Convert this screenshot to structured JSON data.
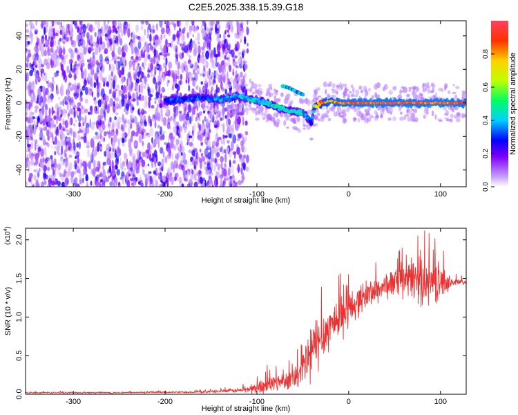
{
  "title": "C2E5.2025.338.15.39.G18",
  "chart_data": [
    {
      "type": "heatmap",
      "panel": "top",
      "xlabel": "Height of straight line (km)",
      "ylabel": "Frequency (Hz)",
      "xlim": [
        -352,
        128
      ],
      "ylim": [
        -50,
        49
      ],
      "xticks": [
        -300,
        -200,
        -100,
        0,
        100
      ],
      "xtick_labels": [
        "-300",
        "-200",
        "-100",
        "0",
        "100"
      ],
      "yticks": [
        -40,
        -20,
        0,
        20,
        40
      ],
      "ytick_labels": [
        "-40",
        "-20",
        "0",
        "20",
        "40"
      ],
      "colorbar": {
        "label": "Normalized spectral amplitude",
        "range": [
          0,
          1
        ],
        "ticks": [
          0.0,
          0.2,
          0.4,
          0.6,
          0.8
        ],
        "tick_labels": [
          "0.0",
          "0.2",
          "0.4",
          "0.6",
          "0.8"
        ]
      },
      "noise_region": {
        "x_from": -352,
        "x_to": -120,
        "amplitude": 0.2
      },
      "ridge": {
        "x": [
          -200,
          -180,
          -160,
          -140,
          -120,
          -105,
          -90,
          -75,
          -60,
          -50,
          -45,
          -40,
          -38,
          -30,
          -20,
          -10,
          0,
          20,
          40,
          60,
          80,
          100,
          128
        ],
        "y": [
          1,
          2,
          3,
          2,
          4,
          2,
          0,
          -3,
          -5,
          -6,
          -9,
          -12,
          -3,
          0,
          1,
          0,
          0,
          0,
          0,
          0,
          0,
          0,
          0
        ],
        "amplitude": [
          0.35,
          0.35,
          0.35,
          0.4,
          0.4,
          0.45,
          0.45,
          0.5,
          0.5,
          0.45,
          0.4,
          0.35,
          0.6,
          0.9,
          0.95,
          0.98,
          0.99,
          1,
          1,
          1,
          1,
          1,
          1
        ]
      },
      "side_branch": {
        "x": [
          -72,
          -65,
          -58,
          -50
        ],
        "y": [
          10,
          9,
          7,
          5
        ],
        "amplitude": 0.4
      }
    },
    {
      "type": "line",
      "panel": "bottom",
      "xlabel": "Height of straight line (km)",
      "ylabel": "SNR (10 * v/v)",
      "y_scale_note": "(x10",
      "y_scale_exponent": "4",
      "y_scale_close": ")",
      "xlim": [
        -352,
        128
      ],
      "ylim": [
        0,
        2.15
      ],
      "xticks": [
        -300,
        -200,
        -100,
        0,
        100
      ],
      "xtick_labels": [
        "-300",
        "-200",
        "-100",
        "0",
        "100"
      ],
      "yticks": [
        0.0,
        0.5,
        1.0,
        1.5,
        2.0
      ],
      "ytick_labels": [
        "0.0",
        "0.5",
        "1.0",
        "1.5",
        "2.0"
      ],
      "series": [
        {
          "name": "SNR",
          "color": "#ee3030",
          "x": [
            -352,
            -300,
            -250,
            -200,
            -160,
            -140,
            -120,
            -100,
            -90,
            -80,
            -70,
            -60,
            -55,
            -50,
            -45,
            -40,
            -35,
            -30,
            -25,
            -20,
            -15,
            -10,
            -5,
            0,
            5,
            10,
            20,
            30,
            40,
            50,
            60,
            70,
            80,
            90,
            100,
            110,
            120,
            128
          ],
          "y": [
            0.02,
            0.02,
            0.02,
            0.025,
            0.03,
            0.04,
            0.05,
            0.08,
            0.12,
            0.15,
            0.18,
            0.2,
            0.22,
            0.3,
            0.45,
            0.55,
            0.65,
            0.75,
            0.8,
            0.9,
            0.95,
            1.0,
            1.05,
            1.1,
            1.15,
            1.2,
            1.3,
            1.35,
            1.4,
            1.45,
            1.45,
            1.5,
            1.5,
            1.45,
            1.45,
            1.45,
            1.45,
            1.45
          ],
          "noise": [
            0.01,
            0.01,
            0.01,
            0.01,
            0.015,
            0.02,
            0.03,
            0.08,
            0.12,
            0.12,
            0.1,
            0.15,
            0.2,
            0.3,
            0.4,
            0.45,
            0.4,
            0.35,
            0.3,
            0.3,
            0.3,
            0.3,
            0.28,
            0.25,
            0.22,
            0.2,
            0.2,
            0.18,
            0.18,
            0.18,
            0.22,
            0.3,
            0.35,
            0.3,
            0.25,
            0.08,
            0.05,
            0.04
          ]
        }
      ]
    }
  ]
}
